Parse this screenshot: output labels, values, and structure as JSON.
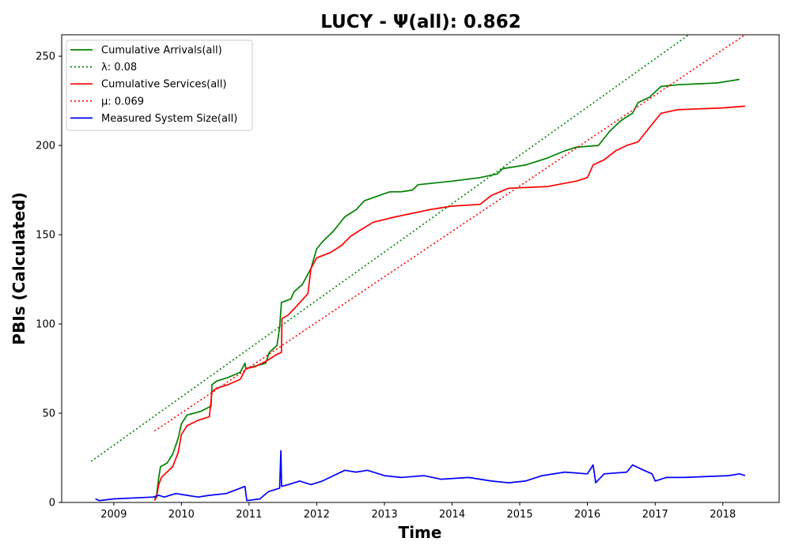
{
  "chart_data": {
    "type": "line",
    "title": "LUCY -  Ψ(all): 0.862",
    "xlabel": "Time",
    "ylabel": "PBIs (Calculated)",
    "xlim": [
      "2008-03-26",
      "2018-11-01"
    ],
    "ylim": [
      0,
      262
    ],
    "x_ticks": [
      "2009",
      "2010",
      "2011",
      "2012",
      "2013",
      "2014",
      "2015",
      "2016",
      "2017",
      "2018"
    ],
    "y_ticks": [
      0,
      50,
      100,
      150,
      200,
      250
    ],
    "grid": false,
    "legend_position": "top-left",
    "colors": {
      "green": "#008000",
      "red": "#ff0000",
      "blue": "#0000ff"
    },
    "series": [
      {
        "name": "Cumulative Arrivals(all)",
        "color": "#008000",
        "style": "solid",
        "points": [
          [
            "2009-08-09",
            2
          ],
          [
            "2009-08-20",
            4
          ],
          [
            "2009-09-01",
            14
          ],
          [
            "2009-09-10",
            20
          ],
          [
            "2009-10-15",
            22
          ],
          [
            "2009-11-15",
            27
          ],
          [
            "2009-12-15",
            36
          ],
          [
            "2010-01-01",
            44
          ],
          [
            "2010-02-01",
            49
          ],
          [
            "2010-04-15",
            51
          ],
          [
            "2010-06-10",
            54
          ],
          [
            "2010-06-15",
            66
          ],
          [
            "2010-07-10",
            68
          ],
          [
            "2010-09-10",
            70
          ],
          [
            "2010-11-15",
            73
          ],
          [
            "2010-12-10",
            78
          ],
          [
            "2010-12-15",
            75
          ],
          [
            "2011-04-01",
            78
          ],
          [
            "2011-04-20",
            84
          ],
          [
            "2011-06-01",
            88
          ],
          [
            "2011-06-15",
            98
          ],
          [
            "2011-06-25",
            112
          ],
          [
            "2011-08-15",
            114
          ],
          [
            "2011-09-01",
            118
          ],
          [
            "2011-10-15",
            122
          ],
          [
            "2011-12-01",
            131
          ],
          [
            "2012-01-01",
            142
          ],
          [
            "2012-02-01",
            146
          ],
          [
            "2012-04-01",
            152
          ],
          [
            "2012-06-01",
            160
          ],
          [
            "2012-08-01",
            164
          ],
          [
            "2012-09-15",
            169
          ],
          [
            "2013-01-01",
            173
          ],
          [
            "2013-02-01",
            174
          ],
          [
            "2013-04-01",
            174
          ],
          [
            "2013-06-01",
            175
          ],
          [
            "2013-07-01",
            178
          ],
          [
            "2014-01-01",
            180
          ],
          [
            "2014-06-01",
            182
          ],
          [
            "2014-09-01",
            184
          ],
          [
            "2014-10-01",
            187
          ],
          [
            "2015-02-01",
            189
          ],
          [
            "2015-06-01",
            193
          ],
          [
            "2015-09-01",
            197
          ],
          [
            "2015-11-01",
            199
          ],
          [
            "2016-03-01",
            200
          ],
          [
            "2016-05-01",
            208
          ],
          [
            "2016-07-01",
            214
          ],
          [
            "2016-09-01",
            218
          ],
          [
            "2016-10-01",
            224
          ],
          [
            "2016-12-01",
            227
          ],
          [
            "2017-02-01",
            233
          ],
          [
            "2017-05-01",
            234
          ],
          [
            "2017-12-01",
            235
          ],
          [
            "2018-02-01",
            236
          ],
          [
            "2018-04-01",
            237
          ]
        ]
      },
      {
        "name": "λ: 0.08",
        "color": "#008000",
        "style": "dotted",
        "points": [
          [
            "2008-09-01",
            23
          ],
          [
            "2017-07-01",
            262
          ]
        ]
      },
      {
        "name": "Cumulative Services(all)",
        "color": "#ff0000",
        "style": "solid",
        "points": [
          [
            "2009-08-09",
            1
          ],
          [
            "2009-08-20",
            3
          ],
          [
            "2009-09-01",
            10
          ],
          [
            "2009-09-15",
            14
          ],
          [
            "2009-10-15",
            17
          ],
          [
            "2009-11-15",
            20
          ],
          [
            "2009-12-15",
            28
          ],
          [
            "2010-01-01",
            38
          ],
          [
            "2010-02-01",
            43
          ],
          [
            "2010-04-01",
            46
          ],
          [
            "2010-06-01",
            48
          ],
          [
            "2010-06-15",
            62
          ],
          [
            "2010-07-10",
            64
          ],
          [
            "2010-09-10",
            66
          ],
          [
            "2010-11-15",
            69
          ],
          [
            "2010-12-15",
            75
          ],
          [
            "2011-02-01",
            76
          ],
          [
            "2011-04-01",
            79
          ],
          [
            "2011-06-01",
            83
          ],
          [
            "2011-06-25",
            84
          ],
          [
            "2011-06-28",
            103
          ],
          [
            "2011-08-01",
            105
          ],
          [
            "2011-09-15",
            110
          ],
          [
            "2011-11-15",
            117
          ],
          [
            "2011-12-01",
            131
          ],
          [
            "2012-01-01",
            137
          ],
          [
            "2012-03-15",
            140
          ],
          [
            "2012-05-15",
            144
          ],
          [
            "2012-07-01",
            149
          ],
          [
            "2012-08-15",
            152
          ],
          [
            "2012-11-01",
            157
          ],
          [
            "2013-03-01",
            160
          ],
          [
            "2013-06-01",
            162
          ],
          [
            "2013-09-01",
            164
          ],
          [
            "2014-01-01",
            166
          ],
          [
            "2014-06-01",
            167
          ],
          [
            "2014-08-01",
            172
          ],
          [
            "2014-11-01",
            176
          ],
          [
            "2015-06-01",
            177
          ],
          [
            "2015-11-01",
            180
          ],
          [
            "2016-01-01",
            182
          ],
          [
            "2016-02-01",
            189
          ],
          [
            "2016-04-01",
            192
          ],
          [
            "2016-06-01",
            197
          ],
          [
            "2016-08-01",
            200
          ],
          [
            "2016-10-01",
            202
          ],
          [
            "2016-12-01",
            210
          ],
          [
            "2017-02-01",
            218
          ],
          [
            "2017-05-01",
            220
          ],
          [
            "2018-01-01",
            221
          ],
          [
            "2018-05-01",
            222
          ]
        ]
      },
      {
        "name": "μ: 0.069",
        "color": "#ff0000",
        "style": "dotted",
        "points": [
          [
            "2009-08-09",
            40
          ],
          [
            "2018-05-01",
            262
          ]
        ]
      },
      {
        "name": "Measured System Size(all)",
        "color": "#0000ff",
        "style": "solid",
        "points": [
          [
            "2008-09-24",
            2
          ],
          [
            "2008-10-15",
            1
          ],
          [
            "2009-01-01",
            2
          ],
          [
            "2009-08-01",
            3
          ],
          [
            "2009-09-01",
            4
          ],
          [
            "2009-10-01",
            3
          ],
          [
            "2009-12-01",
            5
          ],
          [
            "2010-02-01",
            4
          ],
          [
            "2010-04-01",
            3
          ],
          [
            "2010-06-01",
            4
          ],
          [
            "2010-09-01",
            5
          ],
          [
            "2010-12-10",
            9
          ],
          [
            "2010-12-20",
            1
          ],
          [
            "2011-03-01",
            2
          ],
          [
            "2011-04-15",
            6
          ],
          [
            "2011-06-15",
            8
          ],
          [
            "2011-06-22",
            29
          ],
          [
            "2011-06-26",
            9
          ],
          [
            "2011-08-01",
            10
          ],
          [
            "2011-10-01",
            12
          ],
          [
            "2011-12-01",
            10
          ],
          [
            "2012-02-01",
            12
          ],
          [
            "2012-04-01",
            15
          ],
          [
            "2012-06-01",
            18
          ],
          [
            "2012-08-01",
            17
          ],
          [
            "2012-10-01",
            18
          ],
          [
            "2013-01-01",
            15
          ],
          [
            "2013-04-01",
            14
          ],
          [
            "2013-08-01",
            15
          ],
          [
            "2013-11-01",
            13
          ],
          [
            "2014-04-01",
            14
          ],
          [
            "2014-08-01",
            12
          ],
          [
            "2014-11-01",
            11
          ],
          [
            "2015-02-01",
            12
          ],
          [
            "2015-05-01",
            15
          ],
          [
            "2015-09-01",
            17
          ],
          [
            "2016-01-01",
            16
          ],
          [
            "2016-02-01",
            21
          ],
          [
            "2016-02-15",
            11
          ],
          [
            "2016-04-01",
            16
          ],
          [
            "2016-08-01",
            17
          ],
          [
            "2016-09-01",
            21
          ],
          [
            "2016-11-01",
            18
          ],
          [
            "2016-12-15",
            16
          ],
          [
            "2017-01-01",
            12
          ],
          [
            "2017-03-01",
            14
          ],
          [
            "2017-06-01",
            14
          ],
          [
            "2018-02-01",
            15
          ],
          [
            "2018-04-01",
            16
          ],
          [
            "2018-05-01",
            15
          ]
        ]
      }
    ]
  }
}
